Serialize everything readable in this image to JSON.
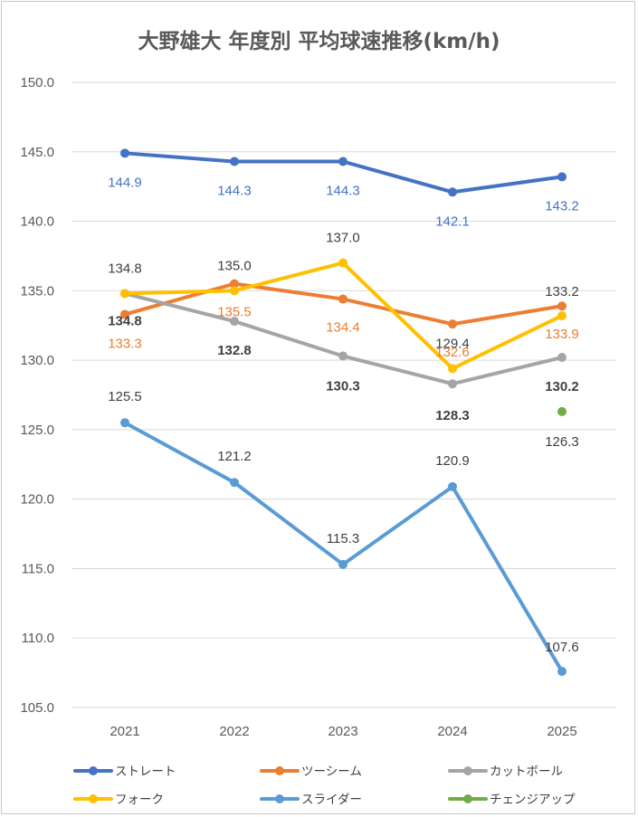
{
  "chart_data": {
    "type": "line",
    "title": "大野雄大 年度別 平均球速推移(km/h)",
    "categories": [
      "2021",
      "2022",
      "2023",
      "2024",
      "2025"
    ],
    "ylim": [
      105,
      150
    ],
    "yticks": [
      "105.0",
      "110.0",
      "115.0",
      "120.0",
      "125.0",
      "130.0",
      "135.0",
      "140.0",
      "145.0",
      "150.0"
    ],
    "grid": true,
    "legend_position": "bottom",
    "series": [
      {
        "name": "ストレート",
        "color": "#4472C4",
        "values": [
          144.9,
          144.3,
          144.3,
          142.1,
          143.2
        ],
        "labels": [
          "144.9",
          "144.3",
          "144.3",
          "142.1",
          "143.2"
        ]
      },
      {
        "name": "ツーシーム",
        "color": "#ED7D31",
        "values": [
          133.3,
          135.5,
          134.4,
          132.6,
          133.9
        ],
        "labels": [
          "133.3",
          "135.5",
          "134.4",
          "132.6",
          "133.9"
        ]
      },
      {
        "name": "カットボール",
        "color": "#A5A5A5",
        "values": [
          134.8,
          132.8,
          130.3,
          128.3,
          130.2
        ],
        "labels": [
          "134.8",
          "132.8",
          "130.3",
          "128.3",
          "130.2"
        ]
      },
      {
        "name": "フォーク",
        "color": "#FFC000",
        "values": [
          134.8,
          135.0,
          137.0,
          129.4,
          133.2
        ],
        "labels": [
          "134.8",
          "135.0",
          "137.0",
          "129.4",
          "133.2"
        ]
      },
      {
        "name": "スライダー",
        "color": "#5B9BD5",
        "values": [
          125.5,
          121.2,
          115.3,
          120.9,
          107.6
        ],
        "labels": [
          "125.5",
          "121.2",
          "115.3",
          "120.9",
          "107.6"
        ]
      },
      {
        "name": "チェンジアップ",
        "color": "#70AD47",
        "values": [
          null,
          null,
          null,
          null,
          126.3
        ],
        "labels": [
          null,
          null,
          null,
          null,
          "126.3"
        ]
      }
    ]
  }
}
